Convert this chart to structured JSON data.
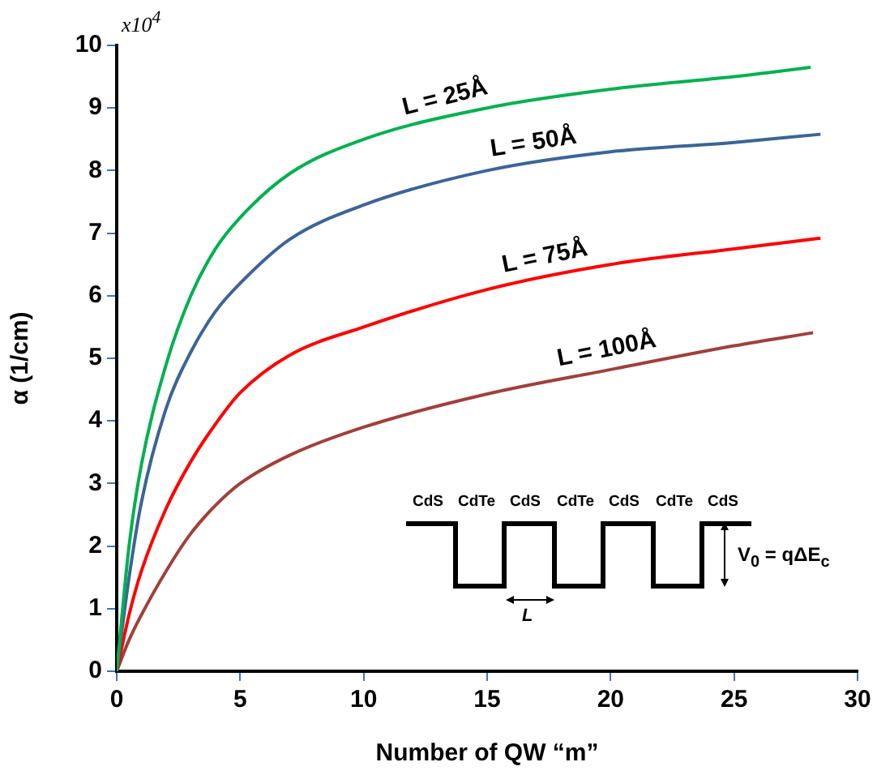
{
  "chart_data": {
    "type": "line",
    "xlabel": "Number of QW “m”",
    "ylabel": "α (1/cm)",
    "xlim": [
      0,
      30
    ],
    "xticks": [
      0,
      5,
      10,
      15,
      20,
      25,
      30
    ],
    "ylim": [
      0,
      10
    ],
    "yticks": [
      0,
      1,
      2,
      3,
      4,
      5,
      6,
      7,
      8,
      9,
      10
    ],
    "series": [
      {
        "name": "L = 25Å",
        "color": "#00b050",
        "x": [
          0,
          0.5,
          1,
          2,
          3,
          4,
          5,
          7,
          10,
          15,
          20,
          25,
          28.1
        ],
        "values": [
          0,
          2.0,
          3.3,
          4.9,
          6.0,
          6.75,
          7.25,
          7.95,
          8.5,
          9.0,
          9.3,
          9.5,
          9.65
        ]
      },
      {
        "name": "L = 50Å",
        "color": "#3c6496",
        "x": [
          0,
          0.5,
          1,
          2,
          3,
          4,
          5,
          7,
          10,
          15,
          20,
          25,
          28.5
        ],
        "values": [
          0,
          1.5,
          2.7,
          4.2,
          5.1,
          5.75,
          6.2,
          6.9,
          7.45,
          8.0,
          8.3,
          8.45,
          8.58
        ]
      },
      {
        "name": "L = 75Å",
        "color": "#ff0000",
        "x": [
          0,
          0.5,
          1,
          2,
          3,
          4,
          5,
          7,
          10,
          15,
          20,
          25,
          28.5
        ],
        "values": [
          0,
          0.9,
          1.6,
          2.6,
          3.35,
          3.95,
          4.45,
          5.05,
          5.5,
          6.1,
          6.5,
          6.75,
          6.92
        ]
      },
      {
        "name": "L = 100Å",
        "color": "#a0403c",
        "x": [
          0,
          0.5,
          1,
          2,
          3,
          4,
          5,
          7,
          10,
          15,
          20,
          25,
          28.2
        ],
        "values": [
          0,
          0.5,
          0.9,
          1.6,
          2.2,
          2.65,
          3.0,
          3.45,
          3.9,
          4.43,
          4.82,
          5.2,
          5.41
        ]
      }
    ],
    "annotations": [
      "x10$^{4}$",
      "CdS",
      "CdTe",
      "CdS",
      "CdTe",
      "CdS",
      "CdTe",
      "CdS",
      "L",
      "V$_{0}$ = qΔE$_{c}$"
    ]
  }
}
